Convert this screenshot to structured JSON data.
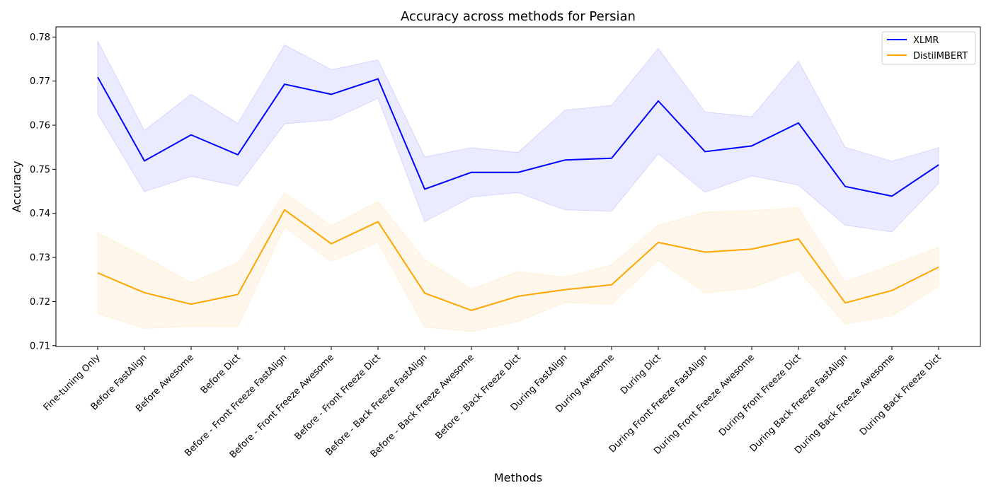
{
  "chart_data": {
    "type": "line",
    "title": "Accuracy across methods for Persian",
    "xlabel": "Methods",
    "ylabel": "Accuracy",
    "ylim": [
      0.7098,
      0.7823
    ],
    "yticks": [
      0.71,
      0.72,
      0.73,
      0.74,
      0.75,
      0.76,
      0.77,
      0.78
    ],
    "ytick_labels": [
      "0.71",
      "0.72",
      "0.73",
      "0.74",
      "0.75",
      "0.76",
      "0.77",
      "0.78"
    ],
    "grid": false,
    "legend_position": "top-right",
    "categories": [
      "Fine-tuning Only",
      "Before FastAlign",
      "Before Awesome",
      "Before Dict",
      "Before - Front Freeze FastAlign",
      "Before - Front Freeze Awesome",
      "Before - Front Freeze Dict",
      "Before - Back Freeze FastAlign",
      "Before - Back Freeze Awesome",
      "Before - Back Freeze Dict",
      "During FastAlign",
      "During Awesome",
      "During Dict",
      "During Front Freeze FastAlign",
      "During Front Freeze Awesome",
      "During Front Freeze Dict",
      "During Back Freeze FastAlign",
      "During Back Freeze Awesome",
      "During Back Freeze Dict"
    ],
    "series": [
      {
        "name": "XLMR",
        "color": "#0000ff",
        "fill": "#e3e3ff",
        "values": [
          0.7709,
          0.7519,
          0.7578,
          0.7533,
          0.7693,
          0.767,
          0.7705,
          0.7455,
          0.7493,
          0.7493,
          0.7521,
          0.7525,
          0.7655,
          0.754,
          0.7553,
          0.7605,
          0.7461,
          0.7439,
          0.751
        ],
        "lower": [
          0.7626,
          0.7449,
          0.7484,
          0.7462,
          0.7603,
          0.7612,
          0.7661,
          0.7381,
          0.7437,
          0.7447,
          0.7408,
          0.7405,
          0.7535,
          0.7448,
          0.7485,
          0.7464,
          0.7373,
          0.7358,
          0.7468
        ],
        "upper": [
          0.7791,
          0.7588,
          0.767,
          0.7604,
          0.7782,
          0.7726,
          0.7748,
          0.7528,
          0.7549,
          0.7538,
          0.7634,
          0.7645,
          0.7774,
          0.763,
          0.7619,
          0.7745,
          0.755,
          0.7518,
          0.7549
        ]
      },
      {
        "name": "DistilMBERT",
        "color": "#ffa500",
        "fill": "#fff4e3",
        "values": [
          0.7265,
          0.722,
          0.7194,
          0.7216,
          0.7408,
          0.7331,
          0.7381,
          0.7219,
          0.718,
          0.7212,
          0.7227,
          0.7238,
          0.7334,
          0.7312,
          0.7319,
          0.7342,
          0.7197,
          0.7225,
          0.7278
        ],
        "lower": [
          0.7173,
          0.7139,
          0.7144,
          0.7143,
          0.7369,
          0.7291,
          0.7334,
          0.7142,
          0.7132,
          0.7155,
          0.7198,
          0.7194,
          0.7294,
          0.7219,
          0.7231,
          0.7271,
          0.7149,
          0.7168,
          0.7234
        ],
        "upper": [
          0.7356,
          0.7302,
          0.7243,
          0.7288,
          0.7447,
          0.7372,
          0.7427,
          0.7295,
          0.7228,
          0.7268,
          0.7255,
          0.7283,
          0.7373,
          0.7403,
          0.7406,
          0.7413,
          0.7245,
          0.7283,
          0.7323
        ]
      }
    ]
  }
}
